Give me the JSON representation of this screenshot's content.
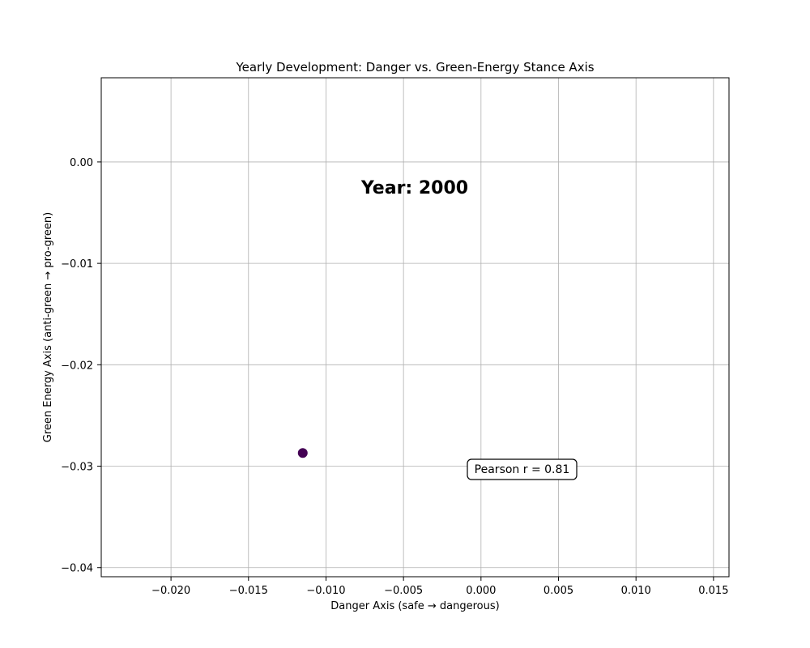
{
  "chart_data": {
    "type": "scatter",
    "title": "Yearly Development: Danger vs. Green-Energy Stance Axis",
    "xlabel": "Danger Axis (safe → dangerous)",
    "ylabel": "Green Energy Axis (anti-green → pro-green)",
    "xlim": [
      -0.0245,
      0.016
    ],
    "ylim": [
      -0.0409,
      0.0083
    ],
    "xticks": [
      -0.02,
      -0.015,
      -0.01,
      -0.005,
      0.0,
      0.005,
      0.01,
      0.015
    ],
    "xtick_labels": [
      "−0.020",
      "−0.015",
      "−0.010",
      "−0.005",
      "0.000",
      "0.005",
      "0.010",
      "0.015"
    ],
    "yticks": [
      0.0,
      -0.01,
      -0.02,
      -0.03,
      -0.04
    ],
    "ytick_labels": [
      "0.00",
      "−0.01",
      "−0.02",
      "−0.03",
      "−0.04"
    ],
    "grid": true,
    "points": [
      {
        "x": -0.0115,
        "y": -0.0287,
        "color": "#440154"
      }
    ],
    "annotations": {
      "year_label": "Year: 2000",
      "correlation": "Pearson r = 0.81"
    }
  }
}
